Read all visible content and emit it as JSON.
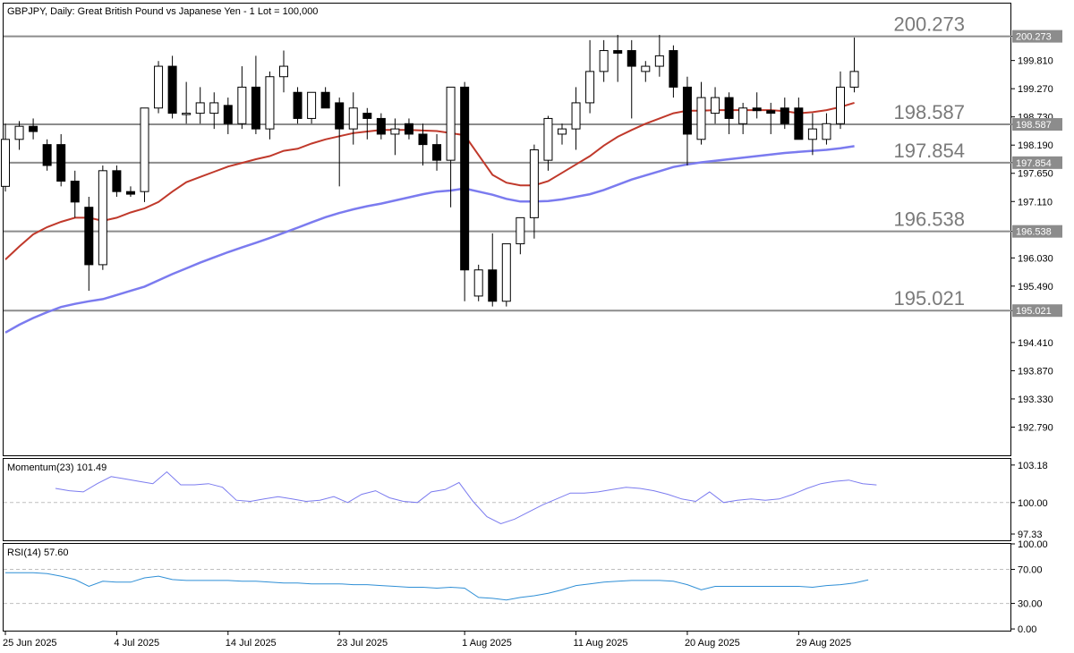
{
  "header": {
    "symbol_text": "GBPJPY, Daily:  Great British Pound vs Japanese Yen - 1 Lot = 100,000"
  },
  "colors": {
    "bull_fill": "#ffffff",
    "bear_fill": "#000000",
    "candle_outline": "#000000",
    "ma_fast": "#c0392b",
    "ma_slow": "#7b7bef",
    "level_line": "#8c8c8c",
    "level_text": "#7a7a7a",
    "momentum_line": "#7b7bef",
    "rsi_line": "#2f8fd6"
  },
  "chart_data": [
    {
      "type": "candlestick",
      "title": "GBPJPY, Daily:  Great British Pound vs Japanese Yen - 1 Lot = 100,000",
      "ylim": [
        192.25,
        200.9
      ],
      "y_ticks": [
        "200.273",
        "199.810",
        "199.270",
        "198.730",
        "198.587",
        "198.190",
        "197.854",
        "197.650",
        "197.110",
        "196.538",
        "196.030",
        "195.490",
        "195.021",
        "194.410",
        "193.870",
        "193.330",
        "192.790"
      ],
      "x_ticks": [
        "25 Jun 2025",
        "4 Jul 2025",
        "14 Jul 2025",
        "23 Jul 2025",
        "1 Aug 2025",
        "11 Aug 2025",
        "20 Aug 2025",
        "29 Aug 2025"
      ],
      "levels": [
        {
          "value": 200.273,
          "label": "200.273"
        },
        {
          "value": 198.587,
          "label": "198.587"
        },
        {
          "value": 197.854,
          "label": "197.854"
        },
        {
          "value": 196.538,
          "label": "196.538"
        },
        {
          "value": 195.021,
          "label": "195.021"
        }
      ],
      "candles": [
        {
          "o": 197.4,
          "h": 198.6,
          "l": 197.3,
          "c": 198.3
        },
        {
          "o": 198.3,
          "h": 198.65,
          "l": 198.1,
          "c": 198.55
        },
        {
          "o": 198.55,
          "h": 198.7,
          "l": 198.3,
          "c": 198.45
        },
        {
          "o": 198.2,
          "h": 198.3,
          "l": 197.7,
          "c": 197.8
        },
        {
          "o": 198.2,
          "h": 198.4,
          "l": 197.4,
          "c": 197.5
        },
        {
          "o": 197.5,
          "h": 197.7,
          "l": 196.8,
          "c": 197.1
        },
        {
          "o": 197.0,
          "h": 197.2,
          "l": 195.4,
          "c": 195.9
        },
        {
          "o": 195.9,
          "h": 197.8,
          "l": 195.8,
          "c": 197.7
        },
        {
          "o": 197.7,
          "h": 197.8,
          "l": 197.2,
          "c": 197.3
        },
        {
          "o": 197.3,
          "h": 197.4,
          "l": 197.2,
          "c": 197.25
        },
        {
          "o": 197.3,
          "h": 198.9,
          "l": 197.1,
          "c": 198.9
        },
        {
          "o": 198.9,
          "h": 199.8,
          "l": 198.8,
          "c": 199.7
        },
        {
          "o": 199.7,
          "h": 199.9,
          "l": 198.7,
          "c": 198.8
        },
        {
          "o": 198.8,
          "h": 199.4,
          "l": 198.6,
          "c": 198.8
        },
        {
          "o": 198.8,
          "h": 199.3,
          "l": 198.6,
          "c": 199.0
        },
        {
          "o": 198.8,
          "h": 199.2,
          "l": 198.5,
          "c": 199.0
        },
        {
          "o": 198.95,
          "h": 199.1,
          "l": 198.4,
          "c": 198.6
        },
        {
          "o": 198.6,
          "h": 199.7,
          "l": 198.5,
          "c": 199.3
        },
        {
          "o": 199.3,
          "h": 199.9,
          "l": 198.4,
          "c": 198.5
        },
        {
          "o": 198.5,
          "h": 199.6,
          "l": 198.3,
          "c": 199.5
        },
        {
          "o": 199.5,
          "h": 200.0,
          "l": 199.2,
          "c": 199.7
        },
        {
          "o": 199.2,
          "h": 199.3,
          "l": 198.6,
          "c": 198.7
        },
        {
          "o": 198.7,
          "h": 199.2,
          "l": 198.6,
          "c": 199.2
        },
        {
          "o": 199.2,
          "h": 199.3,
          "l": 198.9,
          "c": 198.9
        },
        {
          "o": 199.0,
          "h": 199.1,
          "l": 197.4,
          "c": 198.5
        },
        {
          "o": 198.5,
          "h": 199.2,
          "l": 198.2,
          "c": 198.9
        },
        {
          "o": 198.8,
          "h": 198.9,
          "l": 198.3,
          "c": 198.7
        },
        {
          "o": 198.7,
          "h": 198.8,
          "l": 198.3,
          "c": 198.4
        },
        {
          "o": 198.4,
          "h": 198.7,
          "l": 198.0,
          "c": 198.5
        },
        {
          "o": 198.6,
          "h": 198.7,
          "l": 198.3,
          "c": 198.4
        },
        {
          "o": 198.4,
          "h": 198.6,
          "l": 197.8,
          "c": 198.2
        },
        {
          "o": 198.2,
          "h": 198.4,
          "l": 197.7,
          "c": 197.9
        },
        {
          "o": 197.9,
          "h": 199.3,
          "l": 197.0,
          "c": 199.3
        },
        {
          "o": 199.3,
          "h": 199.4,
          "l": 195.2,
          "c": 195.8
        },
        {
          "o": 195.3,
          "h": 195.9,
          "l": 195.2,
          "c": 195.8
        },
        {
          "o": 195.8,
          "h": 196.5,
          "l": 195.1,
          "c": 195.2
        },
        {
          "o": 195.2,
          "h": 196.3,
          "l": 195.1,
          "c": 196.3
        },
        {
          "o": 196.3,
          "h": 196.8,
          "l": 196.1,
          "c": 196.8
        },
        {
          "o": 196.8,
          "h": 198.2,
          "l": 196.4,
          "c": 198.1
        },
        {
          "o": 197.9,
          "h": 198.75,
          "l": 197.7,
          "c": 198.7
        },
        {
          "o": 198.4,
          "h": 198.6,
          "l": 198.2,
          "c": 198.5
        },
        {
          "o": 198.5,
          "h": 199.3,
          "l": 198.1,
          "c": 199.0
        },
        {
          "o": 199.0,
          "h": 200.2,
          "l": 198.8,
          "c": 199.6
        },
        {
          "o": 199.6,
          "h": 200.2,
          "l": 199.4,
          "c": 200.0
        },
        {
          "o": 200.0,
          "h": 200.3,
          "l": 199.4,
          "c": 199.95
        },
        {
          "o": 200.0,
          "h": 200.2,
          "l": 198.7,
          "c": 199.7
        },
        {
          "o": 199.6,
          "h": 199.8,
          "l": 199.4,
          "c": 199.7
        },
        {
          "o": 199.7,
          "h": 200.3,
          "l": 199.5,
          "c": 199.9
        },
        {
          "o": 200.0,
          "h": 200.1,
          "l": 199.1,
          "c": 199.3
        },
        {
          "o": 199.3,
          "h": 199.5,
          "l": 197.8,
          "c": 198.4
        },
        {
          "o": 198.3,
          "h": 199.4,
          "l": 198.2,
          "c": 199.1
        },
        {
          "o": 198.8,
          "h": 199.3,
          "l": 198.6,
          "c": 199.1
        },
        {
          "o": 199.1,
          "h": 199.2,
          "l": 198.4,
          "c": 198.7
        },
        {
          "o": 198.6,
          "h": 199.0,
          "l": 198.4,
          "c": 198.9
        },
        {
          "o": 198.9,
          "h": 199.2,
          "l": 198.7,
          "c": 198.85
        },
        {
          "o": 198.85,
          "h": 199.0,
          "l": 198.4,
          "c": 198.8
        },
        {
          "o": 198.9,
          "h": 199.1,
          "l": 198.5,
          "c": 198.6
        },
        {
          "o": 198.9,
          "h": 199.1,
          "l": 198.3,
          "c": 198.3
        },
        {
          "o": 198.3,
          "h": 198.8,
          "l": 198.0,
          "c": 198.5
        },
        {
          "o": 198.3,
          "h": 198.8,
          "l": 198.2,
          "c": 198.6
        },
        {
          "o": 198.6,
          "h": 199.6,
          "l": 198.5,
          "c": 199.3
        },
        {
          "o": 199.3,
          "h": 200.25,
          "l": 199.2,
          "c": 199.6
        }
      ],
      "ma_fast": [
        196.0,
        196.25,
        196.48,
        196.62,
        196.72,
        196.8,
        196.8,
        196.74,
        196.8,
        196.9,
        196.98,
        197.1,
        197.3,
        197.48,
        197.58,
        197.68,
        197.78,
        197.85,
        197.92,
        197.98,
        198.08,
        198.12,
        198.22,
        198.3,
        198.36,
        198.42,
        198.45,
        198.48,
        198.48,
        198.48,
        198.47,
        198.46,
        198.42,
        198.38,
        198.0,
        197.62,
        197.47,
        197.42,
        197.42,
        197.5,
        197.66,
        197.82,
        197.98,
        198.18,
        198.35,
        198.48,
        198.6,
        198.7,
        198.8,
        198.85,
        198.85,
        198.86,
        198.86,
        198.86,
        198.86,
        198.86,
        198.84,
        198.8,
        198.82,
        198.86,
        198.92,
        199.0
      ],
      "ma_slow": [
        194.6,
        194.75,
        194.88,
        194.99,
        195.09,
        195.15,
        195.2,
        195.24,
        195.32,
        195.4,
        195.48,
        195.6,
        195.72,
        195.83,
        195.94,
        196.04,
        196.14,
        196.23,
        196.32,
        196.41,
        196.51,
        196.61,
        196.71,
        196.81,
        196.89,
        196.96,
        197.02,
        197.07,
        197.13,
        197.19,
        197.25,
        197.3,
        197.32,
        197.36,
        197.3,
        197.24,
        197.16,
        197.11,
        197.11,
        197.12,
        197.15,
        197.2,
        197.25,
        197.33,
        197.43,
        197.53,
        197.61,
        197.69,
        197.77,
        197.82,
        197.86,
        197.89,
        197.92,
        197.95,
        197.98,
        198.01,
        198.04,
        198.06,
        198.08,
        198.1,
        198.13,
        198.17
      ]
    },
    {
      "type": "line",
      "name": "Momentum(23)",
      "value_label": "101.49",
      "ylim": [
        96.8,
        103.7
      ],
      "y_ticks": [
        "103.18",
        "100.00",
        "97.33"
      ],
      "values": [
        101.8,
        101.6,
        102.0,
        100.7,
        101.2,
        101.0,
        100.9,
        101.6,
        102.2,
        102.0,
        101.8,
        101.6,
        102.6,
        101.5,
        101.5,
        101.6,
        101.3,
        100.2,
        100.1,
        100.3,
        100.5,
        100.3,
        100.1,
        100.2,
        100.5,
        100.0,
        100.7,
        101.0,
        100.4,
        100.1,
        100.0,
        100.9,
        101.1,
        101.7,
        100.1,
        98.8,
        98.2,
        98.6,
        99.2,
        99.8,
        100.3,
        100.8,
        100.8,
        100.9,
        101.1,
        101.3,
        101.2,
        101.0,
        100.7,
        100.3,
        100.1,
        100.9,
        100.0,
        100.2,
        100.3,
        100.2,
        100.3,
        100.7,
        101.2,
        101.6,
        101.8,
        101.9,
        101.6,
        101.49
      ]
    },
    {
      "type": "line",
      "name": "RSI(14)",
      "value_label": "57.60",
      "ylim": [
        -2,
        100
      ],
      "y_ticks": [
        "100.00",
        "70.00",
        "30.00",
        "0.00"
      ],
      "levels": [
        70,
        30
      ],
      "values": [
        66,
        66,
        66,
        65,
        62,
        58,
        50,
        56,
        55,
        55,
        60,
        62,
        58,
        57,
        57,
        57,
        57,
        56,
        56,
        55,
        54,
        54,
        53,
        53,
        53,
        52,
        52,
        51,
        50,
        49,
        49,
        48,
        49,
        48,
        37,
        36,
        34,
        37,
        39,
        42,
        46,
        51,
        53,
        55,
        56,
        57,
        57,
        57,
        56,
        52,
        46,
        50,
        50,
        50,
        50,
        50,
        50,
        50,
        49,
        51,
        52,
        54,
        57.6
      ]
    }
  ]
}
